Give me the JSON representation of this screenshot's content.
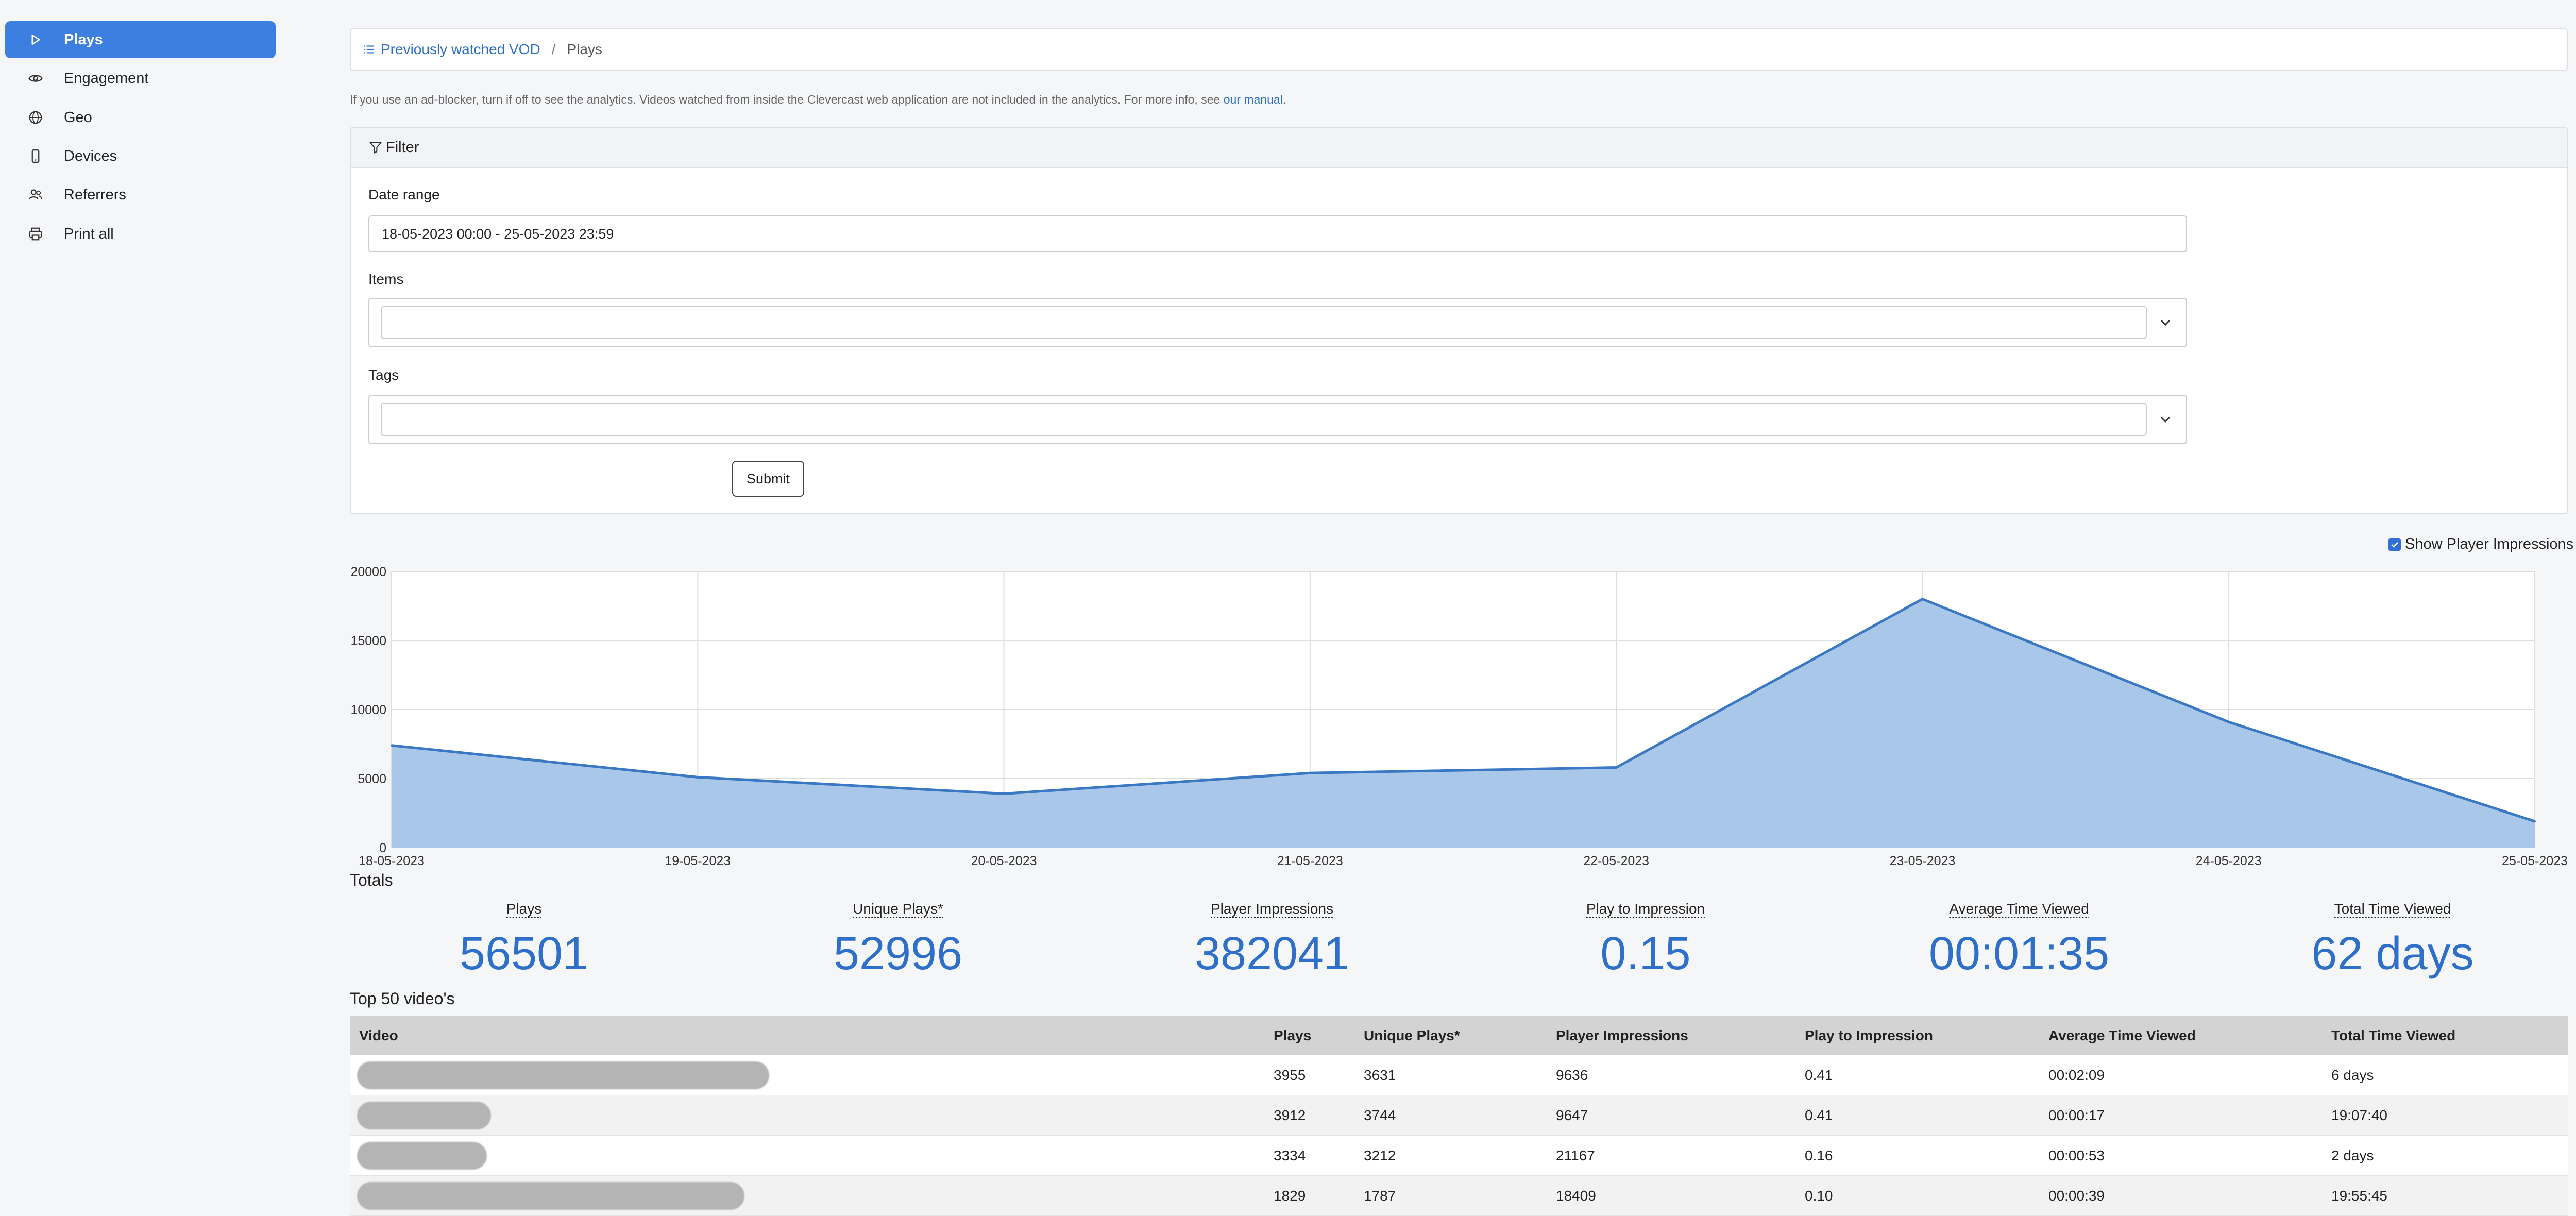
{
  "sidebar": {
    "items": [
      {
        "label": "Plays",
        "icon": "play-icon",
        "active": true
      },
      {
        "label": "Engagement",
        "icon": "eye-icon"
      },
      {
        "label": "Geo",
        "icon": "globe-icon"
      },
      {
        "label": "Devices",
        "icon": "phone-icon"
      },
      {
        "label": "Referrers",
        "icon": "users-icon"
      },
      {
        "label": "Print all",
        "icon": "printer-icon"
      }
    ]
  },
  "breadcrumb": {
    "parent": "Previously watched VOD",
    "separator": "/",
    "current": "Plays"
  },
  "notice": {
    "text": "If you use an ad-blocker, turn if off to see the analytics. Videos watched from inside the Clevercast web application are not included in the analytics. For more info, see ",
    "link": "our manual",
    "suffix": "."
  },
  "filter": {
    "title": "Filter",
    "date_label": "Date range",
    "date_value": "18-05-2023 00:00 - 25-05-2023 23:59",
    "items_label": "Items",
    "tags_label": "Tags",
    "submit_label": "Submit"
  },
  "show_impressions_label": "Show Player Impressions",
  "chart_data": {
    "type": "area",
    "x": [
      "18-05-2023",
      "19-05-2023",
      "20-05-2023",
      "21-05-2023",
      "22-05-2023",
      "23-05-2023",
      "24-05-2023",
      "25-05-2023"
    ],
    "series": [
      {
        "values": [
          7400,
          5100,
          3900,
          5400,
          5800,
          18000,
          9100,
          1900
        ]
      }
    ],
    "ylim": [
      0,
      20000
    ],
    "yticks": [
      0,
      5000,
      10000,
      15000,
      20000
    ],
    "grid": true,
    "color": "#a3c4e8",
    "line_color": "#3a78c4"
  },
  "totals": {
    "title": "Totals",
    "items": [
      {
        "label": "Plays",
        "value": "56501"
      },
      {
        "label": "Unique Plays*",
        "value": "52996"
      },
      {
        "label": "Player Impressions",
        "value": "382041"
      },
      {
        "label": "Play to Impression",
        "value": "0.15"
      },
      {
        "label": "Average Time Viewed",
        "value": "00:01:35"
      },
      {
        "label": "Total Time Viewed",
        "value": "62 days"
      }
    ]
  },
  "top": {
    "title": "Top 50 video's",
    "headers": [
      "Video",
      "Plays",
      "Unique Plays*",
      "Player Impressions",
      "Play to Impression",
      "Average Time Viewed",
      "Total Time Viewed"
    ],
    "rows": [
      {
        "plays": "3955",
        "unique": "3631",
        "impressions": "9636",
        "ratio": "0.41",
        "avg": "00:02:09",
        "total": "6 days"
      },
      {
        "plays": "3912",
        "unique": "3744",
        "impressions": "9647",
        "ratio": "0.41",
        "avg": "00:00:17",
        "total": "19:07:40"
      },
      {
        "plays": "3334",
        "unique": "3212",
        "impressions": "21167",
        "ratio": "0.16",
        "avg": "00:00:53",
        "total": "2 days"
      },
      {
        "plays": "1829",
        "unique": "1787",
        "impressions": "18409",
        "ratio": "0.10",
        "avg": "00:00:39",
        "total": "19:55:45"
      }
    ]
  }
}
